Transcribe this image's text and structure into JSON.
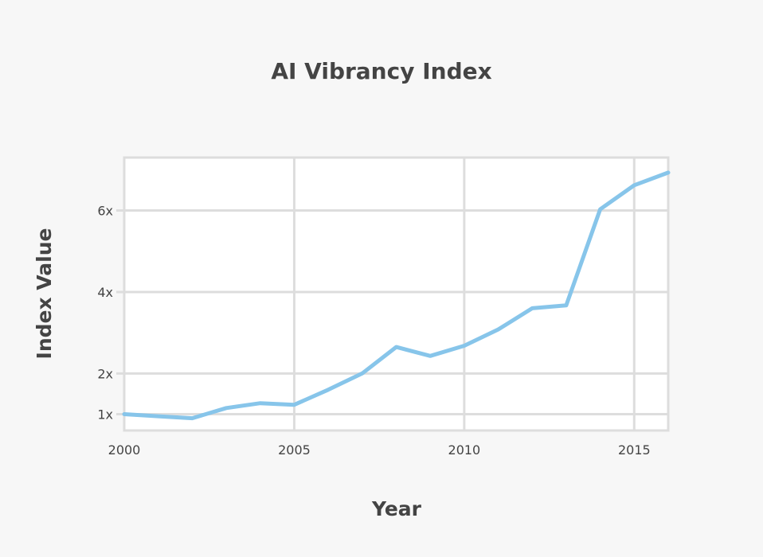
{
  "chart_data": {
    "type": "line",
    "title": "AI Vibrancy Index",
    "xlabel": "Year",
    "ylabel": "Index Value",
    "xlim": [
      2000,
      2016
    ],
    "ylim": [
      0.6,
      7.3
    ],
    "x_ticks": [
      2000,
      2005,
      2010,
      2015
    ],
    "x_tick_labels": [
      "2000",
      "2005",
      "2010",
      "2015"
    ],
    "y_ticks": [
      1,
      2,
      4,
      6
    ],
    "y_tick_labels": [
      "1x",
      "2x",
      "4x",
      "6x"
    ],
    "grid": true,
    "series": [
      {
        "color": "#87c5ea",
        "x": [
          2000,
          2001,
          2002,
          2003,
          2004,
          2005,
          2006,
          2007,
          2008,
          2009,
          2010,
          2011,
          2012,
          2013,
          2014,
          2015,
          2016
        ],
        "y": [
          1.0,
          0.95,
          0.9,
          1.15,
          1.27,
          1.23,
          1.6,
          2.0,
          2.65,
          2.43,
          2.68,
          3.08,
          3.6,
          3.67,
          6.03,
          6.62,
          6.93
        ]
      }
    ]
  }
}
